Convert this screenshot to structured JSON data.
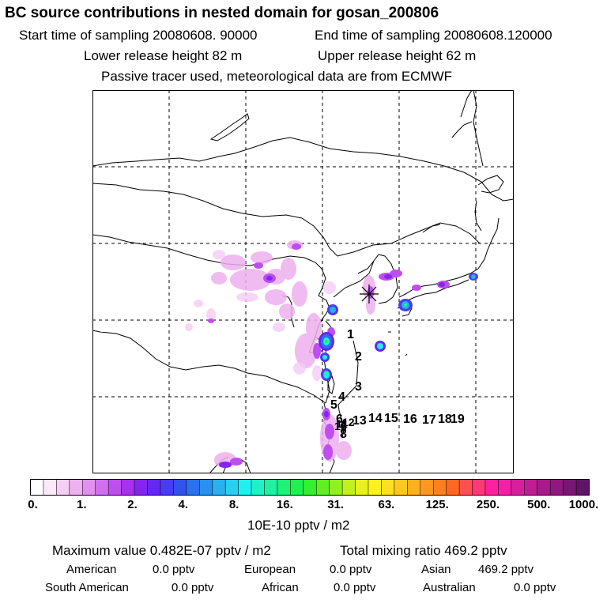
{
  "title": "BC  source contributions in nested domain for gosan_200806",
  "header": {
    "start_time": "Start time of sampling 20080608. 90000",
    "end_time": "End time of sampling 20080608.120000",
    "lower_release": "Lower release height   82 m",
    "upper_release": "Upper release height   62 m",
    "note": "Passive tracer used, meteorological data are from ECMWF"
  },
  "map": {
    "receptor_marker": "✳",
    "trajectory_labels": [
      "1",
      "2",
      "3",
      "4",
      "5",
      "6",
      "7",
      "8",
      "9",
      "10",
      "11",
      "12",
      "13",
      "14",
      "15",
      "16",
      "17",
      "18",
      "19"
    ],
    "hotspots": [
      {
        "region": "north-china-plain",
        "level": 2
      },
      {
        "region": "shanghai",
        "level": 10
      },
      {
        "region": "taiwan-strait",
        "level": 7
      },
      {
        "region": "korea-south",
        "level": 7
      },
      {
        "region": "japan-osaka",
        "level": 6
      }
    ]
  },
  "colorbar": {
    "ticks": [
      "0.",
      "1.",
      "2.",
      "4.",
      "8.",
      "16.",
      "31.",
      "63.",
      "125.",
      "250.",
      "500.",
      "1000."
    ],
    "colors": [
      "#ffffff",
      "#fbe8fb",
      "#f5cdf5",
      "#eeb0ef",
      "#e090ef",
      "#d070ef",
      "#bf4ef0",
      "#a830f0",
      "#8424f0",
      "#6428f0",
      "#4a3cf0",
      "#3252f0",
      "#2a70f0",
      "#2890f0",
      "#28b0f0",
      "#28d0f0",
      "#20f0f0",
      "#20f0c8",
      "#20f0a0",
      "#20f078",
      "#20f050",
      "#30f030",
      "#60f020",
      "#90f020",
      "#c0f020",
      "#e8f020",
      "#fff020",
      "#ffe020",
      "#ffc820",
      "#ffb020",
      "#ff9820",
      "#ff8020",
      "#ff6820",
      "#ff5050",
      "#ff3878",
      "#ff20a0",
      "#f020a8",
      "#d81e9e",
      "#c01c94",
      "#a81a8a",
      "#901880",
      "#781674",
      "#601468"
    ],
    "units": "10E-10 pptv / m2"
  },
  "stats": {
    "maximum_label": "Maximum value  0.482E-07 pptv / m2",
    "total_label": "Total mixing ratio      469.2 pptv",
    "regions": [
      {
        "name": "American",
        "value": "0.0 pptv"
      },
      {
        "name": "European",
        "value": "0.0 pptv"
      },
      {
        "name": "Asian",
        "value": "469.2 pptv"
      },
      {
        "name": "South American",
        "value": "0.0 pptv"
      },
      {
        "name": "African",
        "value": "0.0 pptv"
      },
      {
        "name": "Australian",
        "value": "0.0 pptv"
      }
    ]
  }
}
